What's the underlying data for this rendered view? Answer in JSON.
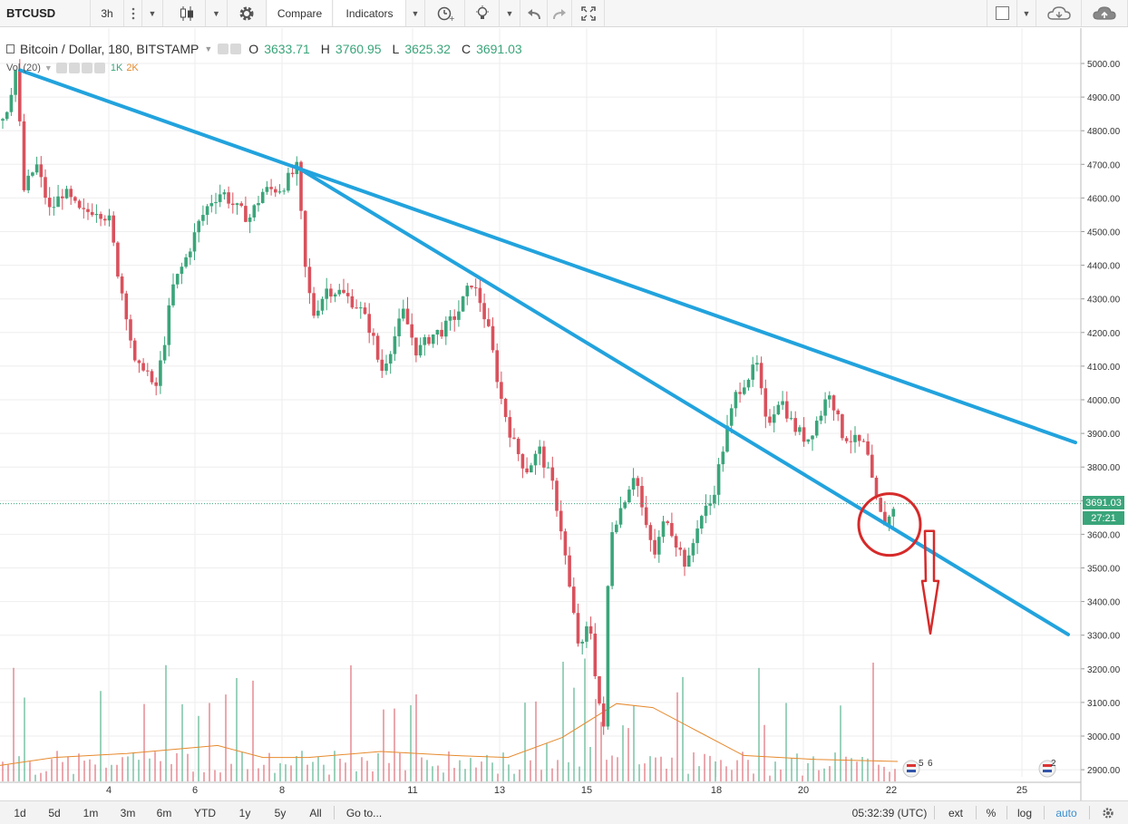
{
  "toolbar": {
    "symbol": "BTCUSD",
    "interval": "3h",
    "compare_label": "Compare",
    "indicators_label": "Indicators"
  },
  "legend": {
    "title": "Bitcoin / Dollar, 180, BITSTAMP",
    "open_label": "O",
    "open": "3633.71",
    "high_label": "H",
    "high": "3760.95",
    "low_label": "L",
    "low": "3625.32",
    "close_label": "C",
    "close": "3691.03"
  },
  "volume_legend": {
    "label": "Vol (20)",
    "scale_1": "1K",
    "scale_2": "2K"
  },
  "price_axis": {
    "ticks": [
      "5000.00",
      "4900.00",
      "4800.00",
      "4700.00",
      "4600.00",
      "4500.00",
      "4400.00",
      "4300.00",
      "4200.00",
      "4100.00",
      "4000.00",
      "3900.00",
      "3800.00",
      "3700.00",
      "3600.00",
      "3500.00",
      "3400.00",
      "3300.00",
      "3200.00",
      "3100.00",
      "3000.00",
      "2900.00"
    ],
    "last_price": "3691.03",
    "countdown": "27:21"
  },
  "time_axis": {
    "labels": [
      "4",
      "6",
      "8",
      "11",
      "13",
      "15",
      "18",
      "20",
      "22",
      "25"
    ]
  },
  "event_markers": [
    "5",
    "6",
    "2"
  ],
  "bottom_bar": {
    "ranges": [
      "1d",
      "5d",
      "1m",
      "3m",
      "6m",
      "YTD",
      "1y",
      "5y",
      "All"
    ],
    "goto_label": "Go to...",
    "clock": "05:32:39 (UTC)",
    "ext": "ext",
    "percent": "%",
    "log": "log",
    "auto": "auto"
  },
  "colors": {
    "up": "#3aa57a",
    "down": "#d9515c",
    "trendline": "#22a3dd",
    "annotation": "#d62a2a",
    "volume_ma": "#e68a2e",
    "grid": "#eeeeee"
  },
  "chart_data": {
    "type": "candlestick",
    "x_axis_labels": [
      "4",
      "6",
      "8",
      "11",
      "13",
      "15",
      "18",
      "20",
      "22",
      "25"
    ],
    "ylim": [
      2860,
      5060
    ],
    "last_close": 3691.03,
    "y_ticks": [
      5000,
      4900,
      4800,
      4700,
      4600,
      4500,
      4400,
      4300,
      4200,
      4100,
      4000,
      3900,
      3800,
      3700,
      3600,
      3500,
      3400,
      3300,
      3200,
      3100,
      3000,
      2900
    ],
    "price_waypoints": [
      {
        "x": 1,
        "y": 4830
      },
      {
        "x": 8,
        "y": 4870
      },
      {
        "x": 18,
        "y": 4990
      },
      {
        "x": 26,
        "y": 4620
      },
      {
        "x": 40,
        "y": 4700
      },
      {
        "x": 55,
        "y": 4560
      },
      {
        "x": 70,
        "y": 4620
      },
      {
        "x": 90,
        "y": 4550
      },
      {
        "x": 105,
        "y": 4570
      },
      {
        "x": 120,
        "y": 4540
      },
      {
        "x": 130,
        "y": 4380
      },
      {
        "x": 140,
        "y": 4250
      },
      {
        "x": 150,
        "y": 4080
      },
      {
        "x": 160,
        "y": 4110
      },
      {
        "x": 170,
        "y": 4010
      },
      {
        "x": 180,
        "y": 4150
      },
      {
        "x": 190,
        "y": 4330
      },
      {
        "x": 205,
        "y": 4420
      },
      {
        "x": 220,
        "y": 4530
      },
      {
        "x": 232,
        "y": 4590
      },
      {
        "x": 245,
        "y": 4620
      },
      {
        "x": 260,
        "y": 4570
      },
      {
        "x": 275,
        "y": 4540
      },
      {
        "x": 290,
        "y": 4620
      },
      {
        "x": 310,
        "y": 4630
      },
      {
        "x": 328,
        "y": 4690
      },
      {
        "x": 336,
        "y": 4400
      },
      {
        "x": 345,
        "y": 4250
      },
      {
        "x": 360,
        "y": 4330
      },
      {
        "x": 375,
        "y": 4320
      },
      {
        "x": 395,
        "y": 4280
      },
      {
        "x": 410,
        "y": 4200
      },
      {
        "x": 420,
        "y": 4080
      },
      {
        "x": 430,
        "y": 4150
      },
      {
        "x": 445,
        "y": 4260
      },
      {
        "x": 460,
        "y": 4140
      },
      {
        "x": 475,
        "y": 4190
      },
      {
        "x": 490,
        "y": 4210
      },
      {
        "x": 505,
        "y": 4260
      },
      {
        "x": 520,
        "y": 4350
      },
      {
        "x": 530,
        "y": 4290
      },
      {
        "x": 540,
        "y": 4190
      },
      {
        "x": 552,
        "y": 4010
      },
      {
        "x": 565,
        "y": 3880
      },
      {
        "x": 580,
        "y": 3790
      },
      {
        "x": 595,
        "y": 3850
      },
      {
        "x": 610,
        "y": 3740
      },
      {
        "x": 620,
        "y": 3600
      },
      {
        "x": 630,
        "y": 3400
      },
      {
        "x": 640,
        "y": 3240
      },
      {
        "x": 650,
        "y": 3350
      },
      {
        "x": 658,
        "y": 3150
      },
      {
        "x": 666,
        "y": 3010
      },
      {
        "x": 672,
        "y": 3600
      },
      {
        "x": 685,
        "y": 3680
      },
      {
        "x": 700,
        "y": 3790
      },
      {
        "x": 712,
        "y": 3620
      },
      {
        "x": 722,
        "y": 3540
      },
      {
        "x": 735,
        "y": 3660
      },
      {
        "x": 745,
        "y": 3580
      },
      {
        "x": 758,
        "y": 3500
      },
      {
        "x": 770,
        "y": 3640
      },
      {
        "x": 785,
        "y": 3700
      },
      {
        "x": 800,
        "y": 3890
      },
      {
        "x": 812,
        "y": 4020
      },
      {
        "x": 822,
        "y": 4060
      },
      {
        "x": 835,
        "y": 4100
      },
      {
        "x": 845,
        "y": 3920
      },
      {
        "x": 860,
        "y": 4010
      },
      {
        "x": 875,
        "y": 3920
      },
      {
        "x": 890,
        "y": 3880
      },
      {
        "x": 905,
        "y": 3960
      },
      {
        "x": 915,
        "y": 4030
      },
      {
        "x": 928,
        "y": 3900
      },
      {
        "x": 940,
        "y": 3880
      },
      {
        "x": 955,
        "y": 3860
      },
      {
        "x": 963,
        "y": 3730
      },
      {
        "x": 970,
        "y": 3660
      },
      {
        "x": 978,
        "y": 3630
      },
      {
        "x": 986,
        "y": 3690
      }
    ],
    "volume_ma_waypoints": [
      {
        "x": 0,
        "y": 0.08
      },
      {
        "x": 60,
        "y": 0.12
      },
      {
        "x": 140,
        "y": 0.14
      },
      {
        "x": 240,
        "y": 0.18
      },
      {
        "x": 290,
        "y": 0.12
      },
      {
        "x": 340,
        "y": 0.12
      },
      {
        "x": 420,
        "y": 0.15
      },
      {
        "x": 500,
        "y": 0.13
      },
      {
        "x": 560,
        "y": 0.12
      },
      {
        "x": 620,
        "y": 0.22
      },
      {
        "x": 680,
        "y": 0.39
      },
      {
        "x": 720,
        "y": 0.37
      },
      {
        "x": 770,
        "y": 0.25
      },
      {
        "x": 820,
        "y": 0.13
      },
      {
        "x": 900,
        "y": 0.11
      },
      {
        "x": 990,
        "y": 0.1
      }
    ],
    "trendlines": [
      {
        "from": {
          "x": 22,
          "y": 4980
        },
        "to": {
          "x": 1186,
          "y": 3873
        }
      },
      {
        "from": {
          "x": 326,
          "y": 4694
        },
        "to": {
          "x": 1178,
          "y": 3302
        }
      }
    ],
    "annotations": [
      {
        "type": "circle",
        "center": {
          "x": 981,
          "y": 3629
        }
      },
      {
        "type": "arrow-down",
        "from": {
          "x": 1025,
          "y": 3610
        },
        "to": {
          "x": 1025,
          "y": 3305
        }
      }
    ]
  }
}
